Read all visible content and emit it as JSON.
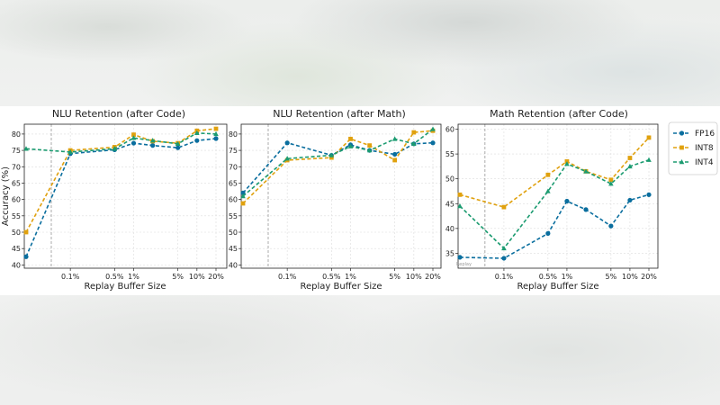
{
  "colors": {
    "FP16": "#0a6e9e",
    "INT8": "#e0a10e",
    "INT4": "#1b9b70"
  },
  "legend": {
    "placement": "right",
    "entries": [
      "FP16",
      "INT8",
      "INT4"
    ]
  },
  "x_tick_labels": [
    "0.1%",
    "0.5%",
    "1%",
    "5%",
    "10%",
    "20%"
  ],
  "chart_data": [
    {
      "type": "line",
      "title": "NLU Retention (after Code)",
      "xlabel": "Replay Buffer Size",
      "ylabel": "Accuracy (%)",
      "xscale": "log",
      "x": [
        0,
        0.1,
        0.5,
        1,
        2,
        5,
        10,
        20
      ],
      "x_ticks": [
        0.1,
        0.5,
        1,
        5,
        10,
        20
      ],
      "xlim": [
        0,
        25
      ],
      "ylim": [
        39,
        83
      ],
      "y_ticks": [
        40,
        45,
        50,
        55,
        60,
        65,
        70,
        75,
        80
      ],
      "vline_x": 0.05,
      "grid": true,
      "series": [
        {
          "name": "FP16",
          "marker": "circle",
          "values": [
            42.5,
            74.0,
            75.2,
            77.2,
            76.5,
            75.8,
            78.0,
            78.6
          ]
        },
        {
          "name": "INT8",
          "marker": "square",
          "values": [
            50.0,
            75.0,
            76.0,
            79.8,
            77.8,
            77.2,
            81.0,
            81.6
          ]
        },
        {
          "name": "INT4",
          "marker": "triangle",
          "values": [
            75.5,
            74.5,
            75.5,
            78.8,
            78.0,
            77.0,
            80.3,
            80.0
          ]
        }
      ]
    },
    {
      "type": "line",
      "title": "NLU Retention (after Math)",
      "xlabel": "Replay Buffer Size",
      "ylabel": "",
      "xscale": "log",
      "x": [
        0,
        0.1,
        0.5,
        1,
        2,
        5,
        10,
        20
      ],
      "x_ticks": [
        0.1,
        0.5,
        1,
        5,
        10,
        20
      ],
      "xlim": [
        0,
        25
      ],
      "ylim": [
        39,
        83
      ],
      "y_ticks": [
        40,
        45,
        50,
        55,
        60,
        65,
        70,
        75,
        80
      ],
      "vline_x": 0.05,
      "grid": true,
      "series": [
        {
          "name": "FP16",
          "marker": "circle",
          "values": [
            62.0,
            77.3,
            73.5,
            76.7,
            75.0,
            73.8,
            77.0,
            77.3
          ]
        },
        {
          "name": "INT8",
          "marker": "square",
          "values": [
            58.8,
            72.0,
            72.8,
            78.5,
            76.5,
            72.0,
            80.5,
            81.0
          ]
        },
        {
          "name": "INT4",
          "marker": "triangle",
          "values": [
            61.0,
            72.5,
            73.5,
            76.2,
            75.0,
            78.5,
            77.0,
            81.5
          ]
        }
      ]
    },
    {
      "type": "line",
      "title": "Math Retention (after Code)",
      "xlabel": "Replay Buffer Size",
      "ylabel": "",
      "xscale": "log",
      "x": [
        0,
        0.1,
        0.5,
        1,
        2,
        5,
        10,
        20
      ],
      "x_ticks": [
        0.1,
        0.5,
        1,
        5,
        10,
        20
      ],
      "xlim": [
        0,
        25
      ],
      "ylim": [
        32,
        61
      ],
      "y_ticks": [
        35,
        40,
        45,
        50,
        55,
        60
      ],
      "vline_x": 0.05,
      "vline_label": "Replay",
      "grid": true,
      "series": [
        {
          "name": "FP16",
          "marker": "circle",
          "values": [
            34.2,
            34.0,
            39.0,
            45.5,
            43.8,
            40.5,
            45.7,
            46.8
          ]
        },
        {
          "name": "INT8",
          "marker": "square",
          "values": [
            46.8,
            44.3,
            50.8,
            53.5,
            51.5,
            49.8,
            54.2,
            58.3
          ]
        },
        {
          "name": "INT4",
          "marker": "triangle",
          "values": [
            44.5,
            36.0,
            47.5,
            53.0,
            51.5,
            49.0,
            52.5,
            53.8
          ]
        }
      ]
    }
  ]
}
